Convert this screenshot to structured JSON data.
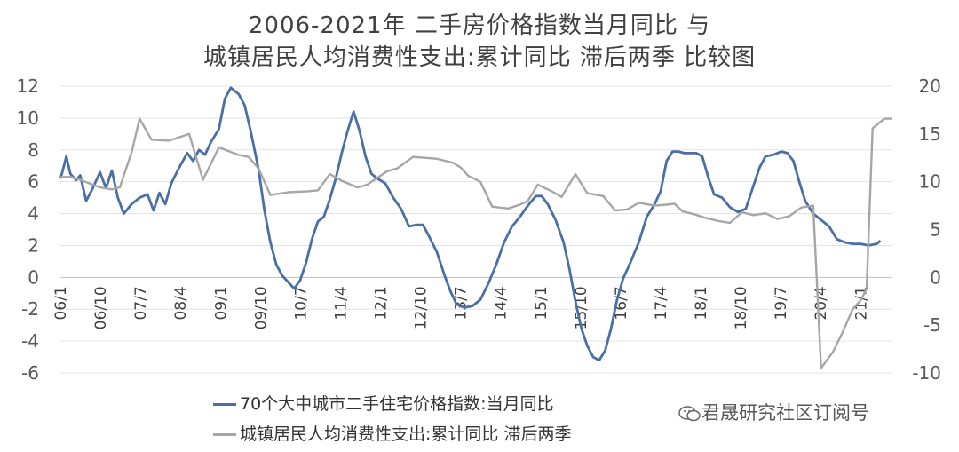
{
  "chart_data": {
    "type": "line",
    "title_line1": "2006-2021年 二手房价格指数当月同比 与",
    "title_line2": "城镇居民人均消费性支出:累计同比 滞后两季 比较图",
    "x_tick_labels": [
      "06/1",
      "06/10",
      "07/7",
      "08/4",
      "09/1",
      "09/10",
      "10/7",
      "11/4",
      "12/1",
      "12/10",
      "13/7",
      "14/4",
      "15/1",
      "15/10",
      "16/7",
      "17/4",
      "18/1",
      "18/10",
      "19/7",
      "20/4",
      "21/1"
    ],
    "left_axis": {
      "ticks": [
        -6,
        -4,
        -2,
        0,
        2,
        4,
        6,
        8,
        10,
        12
      ],
      "ylim": [
        -6,
        12
      ]
    },
    "right_axis": {
      "ticks": [
        -10,
        -5,
        0,
        5,
        10,
        15,
        20
      ],
      "ylim": [
        -10,
        20
      ]
    },
    "series": [
      {
        "name": "70个大中城市二手住宅价格指数:当月同比",
        "axis": "left",
        "color": "#4a6fa5",
        "points": [
          [
            0,
            6.2
          ],
          [
            0.1,
            6.6
          ],
          [
            0.3,
            7.6
          ],
          [
            0.5,
            6.5
          ],
          [
            0.8,
            6.1
          ],
          [
            1,
            6.4
          ],
          [
            1.3,
            4.8
          ],
          [
            1.6,
            5.5
          ],
          [
            2,
            6.6
          ],
          [
            2.3,
            5.6
          ],
          [
            2.6,
            6.7
          ],
          [
            2.9,
            5.0
          ],
          [
            3.2,
            4.0
          ],
          [
            3.6,
            4.6
          ],
          [
            4,
            5.0
          ],
          [
            4.4,
            5.2
          ],
          [
            4.7,
            4.2
          ],
          [
            5,
            5.3
          ],
          [
            5.3,
            4.6
          ],
          [
            5.6,
            5.9
          ],
          [
            6,
            6.9
          ],
          [
            6.4,
            7.8
          ],
          [
            6.7,
            7.3
          ],
          [
            7,
            8.0
          ],
          [
            7.3,
            7.7
          ],
          [
            7.6,
            8.5
          ],
          [
            8,
            9.3
          ],
          [
            8.3,
            11.2
          ],
          [
            8.6,
            11.9
          ],
          [
            9,
            11.5
          ],
          [
            9.3,
            10.8
          ],
          [
            9.6,
            9.2
          ],
          [
            10,
            6.8
          ],
          [
            10.3,
            4.2
          ],
          [
            10.6,
            2.2
          ],
          [
            10.9,
            0.8
          ],
          [
            11.2,
            0.1
          ],
          [
            11.5,
            -0.3
          ],
          [
            11.8,
            -0.7
          ],
          [
            12.1,
            -0.2
          ],
          [
            12.4,
            0.9
          ],
          [
            12.7,
            2.4
          ],
          [
            13,
            3.5
          ],
          [
            13.3,
            3.8
          ],
          [
            13.6,
            4.9
          ],
          [
            13.9,
            6.2
          ],
          [
            14.2,
            7.8
          ],
          [
            14.5,
            9.2
          ],
          [
            14.8,
            10.4
          ],
          [
            15.1,
            9.2
          ],
          [
            15.4,
            7.6
          ],
          [
            15.7,
            6.5
          ],
          [
            16,
            6.2
          ],
          [
            16.4,
            5.9
          ],
          [
            16.8,
            5.0
          ],
          [
            17.2,
            4.3
          ],
          [
            17.6,
            3.2
          ],
          [
            18,
            3.3
          ],
          [
            18.3,
            3.3
          ],
          [
            18.6,
            2.6
          ],
          [
            19,
            1.6
          ],
          [
            19.4,
            0.1
          ],
          [
            19.7,
            -0.9
          ],
          [
            20,
            -1.7
          ],
          [
            20.4,
            -1.9
          ],
          [
            20.8,
            -1.8
          ],
          [
            21.2,
            -1.4
          ],
          [
            21.6,
            -0.4
          ],
          [
            22,
            0.8
          ],
          [
            22.4,
            2.2
          ],
          [
            22.8,
            3.2
          ],
          [
            23.2,
            3.8
          ],
          [
            23.6,
            4.5
          ],
          [
            24,
            5.1
          ],
          [
            24.3,
            5.1
          ],
          [
            24.6,
            4.6
          ],
          [
            25,
            3.6
          ],
          [
            25.4,
            2.2
          ],
          [
            25.7,
            0.5
          ],
          [
            26,
            -1.5
          ],
          [
            26.3,
            -3.2
          ],
          [
            26.6,
            -4.3
          ],
          [
            26.9,
            -5.0
          ],
          [
            27.2,
            -5.2
          ],
          [
            27.5,
            -4.6
          ],
          [
            27.8,
            -3.2
          ],
          [
            28.1,
            -1.4
          ],
          [
            28.4,
            -0.1
          ],
          [
            28.8,
            1.0
          ],
          [
            29.2,
            2.2
          ],
          [
            29.6,
            3.8
          ],
          [
            30,
            4.6
          ],
          [
            30.3,
            5.4
          ],
          [
            30.6,
            7.3
          ],
          [
            30.9,
            7.9
          ],
          [
            31.2,
            7.9
          ],
          [
            31.5,
            7.8
          ],
          [
            31.8,
            7.8
          ],
          [
            32.1,
            7.8
          ],
          [
            32.4,
            7.6
          ],
          [
            32.7,
            6.3
          ],
          [
            33,
            5.2
          ],
          [
            33.4,
            5.0
          ],
          [
            33.8,
            4.4
          ],
          [
            34.2,
            4.1
          ],
          [
            34.6,
            4.3
          ],
          [
            35,
            5.8
          ],
          [
            35.3,
            6.9
          ],
          [
            35.6,
            7.6
          ],
          [
            36,
            7.7
          ],
          [
            36.4,
            7.9
          ],
          [
            36.7,
            7.8
          ],
          [
            37,
            7.3
          ],
          [
            37.3,
            6.0
          ],
          [
            37.6,
            4.8
          ],
          [
            38,
            4.0
          ],
          [
            38.4,
            3.6
          ],
          [
            38.8,
            3.2
          ],
          [
            39.2,
            2.4
          ],
          [
            39.6,
            2.2
          ],
          [
            40,
            2.1
          ],
          [
            40.4,
            2.1
          ],
          [
            40.8,
            2.0
          ],
          [
            41.2,
            2.1
          ],
          [
            41.4,
            2.3
          ]
        ]
      },
      {
        "name": "城镇居民人均消费性支出:累计同比 滞后两季",
        "axis": "right",
        "color": "#a6a6a6",
        "points": [
          [
            0,
            10.5
          ],
          [
            0.5,
            10.5
          ],
          [
            1,
            10.2
          ],
          [
            2,
            9.4
          ],
          [
            2.6,
            9.2
          ],
          [
            3,
            9.4
          ],
          [
            3.6,
            13.1
          ],
          [
            4,
            16.6
          ],
          [
            4.6,
            14.4
          ],
          [
            5.5,
            14.3
          ],
          [
            6.5,
            15.0
          ],
          [
            7.2,
            10.2
          ],
          [
            8,
            13.6
          ],
          [
            9,
            12.8
          ],
          [
            9.5,
            12.6
          ],
          [
            10,
            11.4
          ],
          [
            10.6,
            8.6
          ],
          [
            11.5,
            8.9
          ],
          [
            12.5,
            9.0
          ],
          [
            13,
            9.1
          ],
          [
            13.6,
            10.8
          ],
          [
            14.2,
            10.1
          ],
          [
            15,
            9.4
          ],
          [
            15.5,
            9.7
          ],
          [
            16.5,
            11.1
          ],
          [
            17,
            11.4
          ],
          [
            17.8,
            12.6
          ],
          [
            18.5,
            12.5
          ],
          [
            19,
            12.4
          ],
          [
            19.8,
            12.0
          ],
          [
            20.2,
            11.5
          ],
          [
            20.6,
            10.6
          ],
          [
            21.2,
            10.0
          ],
          [
            21.8,
            7.4
          ],
          [
            22.6,
            7.2
          ],
          [
            23.2,
            7.6
          ],
          [
            23.6,
            8.0
          ],
          [
            24.1,
            9.7
          ],
          [
            24.8,
            9.0
          ],
          [
            25.3,
            8.4
          ],
          [
            26,
            10.8
          ],
          [
            26.6,
            8.8
          ],
          [
            27.4,
            8.5
          ],
          [
            28,
            7.0
          ],
          [
            28.6,
            7.1
          ],
          [
            29.2,
            7.8
          ],
          [
            30,
            7.5
          ],
          [
            30.6,
            7.6
          ],
          [
            31,
            7.7
          ],
          [
            31.4,
            6.9
          ],
          [
            32,
            6.6
          ],
          [
            32.6,
            6.2
          ],
          [
            33.2,
            5.9
          ],
          [
            33.8,
            5.7
          ],
          [
            34.4,
            6.8
          ],
          [
            35,
            6.5
          ],
          [
            35.6,
            6.7
          ],
          [
            36.2,
            6.1
          ],
          [
            36.8,
            6.4
          ],
          [
            37.4,
            7.3
          ],
          [
            38,
            7.5
          ],
          [
            38.4,
            -9.5
          ],
          [
            39,
            -7.8
          ],
          [
            39.5,
            -5.7
          ],
          [
            40,
            -3.3
          ],
          [
            40.4,
            -2.4
          ],
          [
            40.7,
            -1.2
          ],
          [
            41,
            15.6
          ],
          [
            41.3,
            16.1
          ],
          [
            41.6,
            16.6
          ],
          [
            42,
            16.6
          ]
        ]
      }
    ],
    "x_range": [
      0,
      42
    ],
    "grid": "horizontal",
    "legend_position": "bottom"
  },
  "legend": {
    "series1_label": "70个大中城市二手住宅价格指数:当月同比",
    "series2_label": "城镇居民人均消费性支出:累计同比 滞后两季"
  },
  "watermark": {
    "text": "君晟研究社区订阅号",
    "icon": "wechat-icon"
  }
}
